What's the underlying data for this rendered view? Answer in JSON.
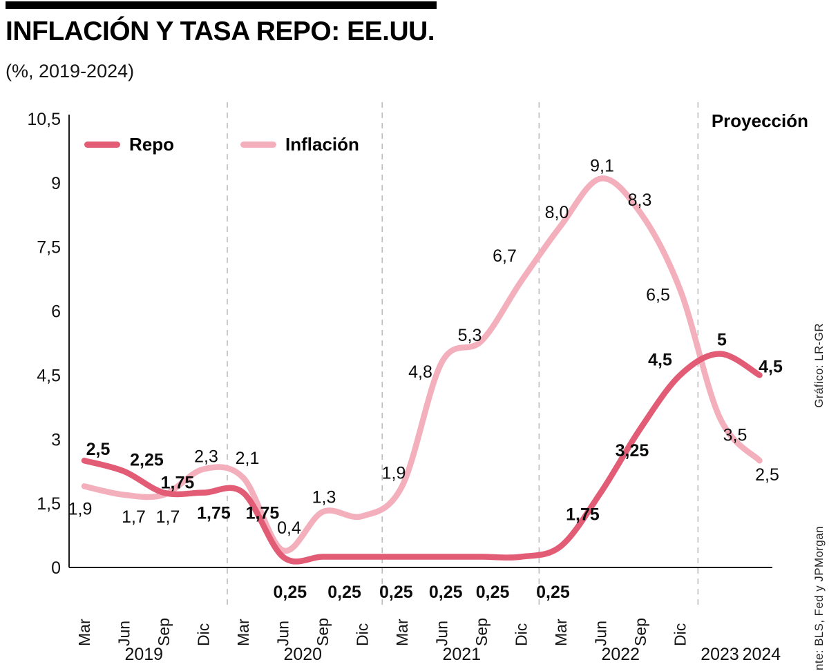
{
  "header": {
    "title": "INFLACIÓN Y TASA REPO: EE.UU.",
    "subtitle": "(%, 2019-2024)"
  },
  "credits": {
    "grafico": "Gráfico: LR-GR",
    "fuente": "Fuente: BLS, Fed y JPMorgan"
  },
  "chart_data": {
    "type": "line",
    "title": "INFLACIÓN Y TASA REPO: EE.UU.",
    "subtitle": "(%, 2019-2024)",
    "ylabel": "%",
    "ylim": [
      0,
      10.5
    ],
    "grid": "dashed-vertical-year-dividers",
    "legend_position": "top-left-inside",
    "projection_label": "Proyección",
    "projection_divider_t": 15.45,
    "year_dividers_t": [
      3.6,
      7.5,
      11.45
    ],
    "yticks": [
      {
        "v": 0,
        "label": "0"
      },
      {
        "v": 1.5,
        "label": "1,5"
      },
      {
        "v": 3,
        "label": "3"
      },
      {
        "v": 4.5,
        "label": "4,5"
      },
      {
        "v": 6,
        "label": "6"
      },
      {
        "v": 7.5,
        "label": "7,5"
      },
      {
        "v": 9,
        "label": "9"
      },
      {
        "v": 10.5,
        "label": "10,5"
      }
    ],
    "quarters": [
      {
        "t": 0,
        "label": "Mar"
      },
      {
        "t": 1,
        "label": "Jun"
      },
      {
        "t": 2,
        "label": "Sep"
      },
      {
        "t": 3,
        "label": "Dic"
      },
      {
        "t": 4,
        "label": "Mar"
      },
      {
        "t": 5,
        "label": "Jun"
      },
      {
        "t": 6,
        "label": "Sep"
      },
      {
        "t": 7,
        "label": "Dic"
      },
      {
        "t": 8,
        "label": "Mar"
      },
      {
        "t": 9,
        "label": "Jun"
      },
      {
        "t": 10,
        "label": "Sep"
      },
      {
        "t": 11,
        "label": "Dic"
      },
      {
        "t": 12,
        "label": "Mar"
      },
      {
        "t": 13,
        "label": "Jun"
      },
      {
        "t": 14,
        "label": "Sep"
      },
      {
        "t": 15,
        "label": "Dic"
      }
    ],
    "years": [
      {
        "t": 1.5,
        "label": "2019"
      },
      {
        "t": 5.5,
        "label": "2020"
      },
      {
        "t": 9.5,
        "label": "2021"
      },
      {
        "t": 13.5,
        "label": "2022"
      },
      {
        "t": 16,
        "label": "2023"
      },
      {
        "t": 17.05,
        "label": "2024"
      }
    ],
    "series": [
      {
        "name": "Repo",
        "color": "#e25c75",
        "bold_labels": true,
        "points": [
          {
            "t": 0,
            "v": 2.5,
            "label": "2,5",
            "dx": 20,
            "dy": -8
          },
          {
            "t": 1,
            "v": 2.25,
            "label": "2,25",
            "dx": 33,
            "dy": -8
          },
          {
            "t": 2,
            "v": 1.75,
            "label": "1,75",
            "dx": 20,
            "dy": -6
          },
          {
            "t": 3,
            "v": 1.75,
            "label": "1,75",
            "dx": 15,
            "dy": 38
          },
          {
            "t": 4,
            "v": 1.75,
            "label": "1,75",
            "dx": 28,
            "dy": 38
          },
          {
            "t": 5,
            "v": 0.25
          },
          {
            "t": 6,
            "v": 0.25
          },
          {
            "t": 7,
            "v": 0.25
          },
          {
            "t": 8,
            "v": 0.25
          },
          {
            "t": 9,
            "v": 0.25
          },
          {
            "t": 10,
            "v": 0.25
          },
          {
            "t": 11,
            "v": 0.25
          },
          {
            "t": 12,
            "v": 0.5
          },
          {
            "t": 13,
            "v": 1.75,
            "label": "1,75",
            "dx": -26,
            "dy": 40
          },
          {
            "t": 14,
            "v": 3.25,
            "label": "3,25",
            "dx": -12,
            "dy": 40
          },
          {
            "t": 15,
            "v": 4.5,
            "label": "4,5",
            "dx": -29,
            "dy": -14
          },
          {
            "t": 16,
            "v": 5.0,
            "label": "5",
            "dx": 3,
            "dy": -12
          },
          {
            "t": 17,
            "v": 4.5,
            "label": "4,5",
            "dx": 16,
            "dy": -4
          }
        ]
      },
      {
        "name": "Inflación",
        "color": "#f3b0bc",
        "bold_labels": false,
        "points": [
          {
            "t": 0,
            "v": 1.9,
            "label": "1,9",
            "dx": -6,
            "dy": 41
          },
          {
            "t": 1,
            "v": 1.7,
            "label": "1,7",
            "dx": 14,
            "dy": 40
          },
          {
            "t": 2,
            "v": 1.7,
            "label": "1,7",
            "dx": 6,
            "dy": 40
          },
          {
            "t": 3,
            "v": 2.3,
            "label": "2,3",
            "dx": 4,
            "dy": -10
          },
          {
            "t": 4,
            "v": 2.1,
            "label": "2,1",
            "dx": 6,
            "dy": -20
          },
          {
            "t": 5,
            "v": 0.4,
            "label": "0,4",
            "dx": 9,
            "dy": -24
          },
          {
            "t": 6,
            "v": 1.3,
            "label": "1,3",
            "dx": 2,
            "dy": -13
          },
          {
            "t": 7,
            "v": 1.2
          },
          {
            "t": 8,
            "v": 1.9,
            "label": "1,9",
            "dx": -12,
            "dy": -11
          },
          {
            "t": 9,
            "v": 4.8,
            "label": "4,8",
            "dx": -31,
            "dy": 22
          },
          {
            "t": 10,
            "v": 5.3,
            "label": "5,3",
            "dx": -17,
            "dy": 0
          },
          {
            "t": 11,
            "v": 6.7,
            "label": "6,7",
            "dx": -24,
            "dy": -28
          },
          {
            "t": 12,
            "v": 8.0,
            "label": "8,0",
            "dx": -6,
            "dy": -11
          },
          {
            "t": 13,
            "v": 9.1,
            "label": "9,1",
            "dx": 2,
            "dy": -10
          },
          {
            "t": 14,
            "v": 8.3,
            "label": "8,3",
            "dx": -1,
            "dy": -10
          },
          {
            "t": 15,
            "v": 6.5,
            "label": "6,5",
            "dx": -32,
            "dy": 16
          },
          {
            "t": 16,
            "v": 3.5,
            "label": "3,5",
            "dx": 22,
            "dy": 33
          },
          {
            "t": 17,
            "v": 2.5,
            "label": "2,5",
            "dx": 11,
            "dy": 29
          }
        ]
      }
    ],
    "below_axis_labels": {
      "series": "Repo",
      "text": "0,25",
      "t": [
        5.18,
        6.55,
        7.85,
        9.1,
        10.28,
        11.8
      ]
    }
  }
}
